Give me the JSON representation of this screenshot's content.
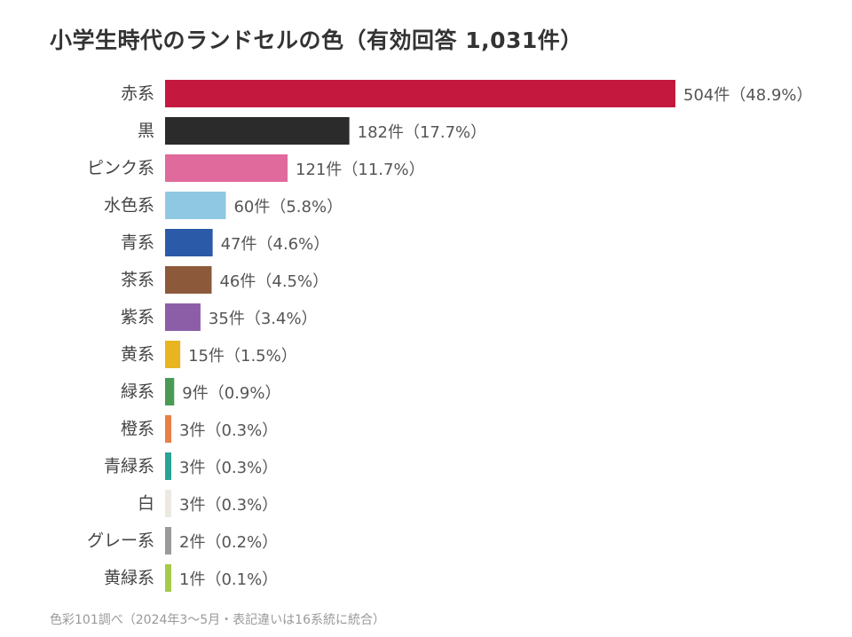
{
  "chart_data": {
    "type": "bar",
    "orientation": "horizontal",
    "title": "小学生時代のランドセルの色（有効回答 1,031件）",
    "categories": [
      "赤系",
      "黒",
      "ピンク系",
      "水色系",
      "青系",
      "茶系",
      "紫系",
      "黄系",
      "緑系",
      "橙系",
      "青緑系",
      "白",
      "グレー系",
      "黄緑系"
    ],
    "values": [
      504,
      182,
      121,
      60,
      47,
      46,
      35,
      15,
      9,
      3,
      3,
      3,
      2,
      1
    ],
    "value_labels": [
      "504件（48.9%）",
      "182件（17.7%）",
      "121件（11.7%）",
      "60件（5.8%）",
      "47件（4.6%）",
      "46件（4.5%）",
      "35件（3.4%）",
      "15件（1.5%）",
      "9件（0.9%）",
      "3件（0.3%）",
      "3件（0.3%）",
      "3件（0.3%）",
      "2件（0.2%）",
      "1件（0.1%）"
    ],
    "colors": [
      "#c4183f",
      "#2b2b2b",
      "#e06a9c",
      "#8fc8e2",
      "#2a5aa8",
      "#8c5a3a",
      "#8c5ea8",
      "#e8b422",
      "#4a9a55",
      "#e88045",
      "#2aa396",
      "#ece9e1",
      "#9a9a9a",
      "#a6c94a"
    ],
    "xlim": [
      0,
      504
    ],
    "grid": false,
    "legend": "none",
    "source": "色彩101調べ（2024年3〜5月・表記違いは16系統に統合）"
  }
}
